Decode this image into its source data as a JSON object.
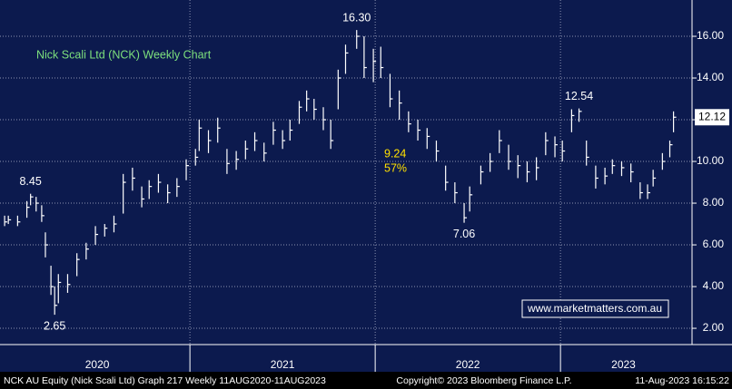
{
  "chart_data": {
    "type": "hlc",
    "title": "Nick Scali Ltd (NCK) Weekly Chart",
    "footer_left": "NCK AU Equity (Nick Scali Ltd) Graph 217  Weekly 11AUG2020-11AUG2023",
    "footer_center": "Copyright© 2023 Bloomberg Finance L.P.",
    "footer_right": "11-Aug-2023 16:15:22",
    "watermark": "www.marketmatters.com.au",
    "color": "#ffffff",
    "background": "#0c1a4e",
    "grid": true,
    "x": [
      2020.0,
      2020.02,
      2020.07,
      2020.12,
      2020.14,
      2020.17,
      2020.2,
      2020.22,
      2020.25,
      2020.27,
      2020.29,
      2020.34,
      2020.39,
      2020.44,
      2020.49,
      2020.54,
      2020.59,
      2020.64,
      2020.69,
      2020.74,
      2020.78,
      2020.83,
      2020.88,
      2020.93,
      2020.98,
      2021.03,
      2021.05,
      2021.1,
      2021.15,
      2021.2,
      2021.25,
      2021.3,
      2021.35,
      2021.4,
      2021.45,
      2021.5,
      2021.54,
      2021.59,
      2021.63,
      2021.67,
      2021.72,
      2021.76,
      2021.8,
      2021.84,
      2021.9,
      2021.94,
      2021.99,
      2022.03,
      2022.08,
      2022.13,
      2022.18,
      2022.23,
      2022.28,
      2022.33,
      2022.38,
      2022.43,
      2022.48,
      2022.51,
      2022.57,
      2022.62,
      2022.67,
      2022.72,
      2022.77,
      2022.82,
      2022.87,
      2022.92,
      2022.97,
      2023.01,
      2023.06,
      2023.1,
      2023.14,
      2023.19,
      2023.24,
      2023.28,
      2023.33,
      2023.38,
      2023.43,
      2023.47,
      2023.5,
      2023.55,
      2023.59,
      2023.61
    ],
    "high": [
      7.4,
      7.4,
      7.4,
      8.1,
      8.45,
      8.3,
      7.9,
      6.6,
      5.0,
      4.0,
      4.6,
      4.6,
      5.6,
      6.1,
      6.9,
      7.0,
      7.4,
      9.4,
      9.7,
      8.8,
      9.1,
      9.4,
      8.9,
      9.2,
      10.1,
      10.6,
      12.0,
      11.5,
      12.1,
      10.6,
      10.5,
      11.0,
      11.4,
      10.9,
      11.9,
      11.5,
      12.0,
      12.9,
      13.4,
      13.0,
      12.6,
      12.0,
      14.4,
      15.6,
      16.3,
      16.0,
      15.4,
      15.5,
      14.2,
      13.4,
      12.4,
      12.0,
      11.6,
      11.0,
      9.8,
      9.0,
      8.0,
      8.8,
      9.8,
      10.4,
      11.5,
      10.8,
      10.3,
      10.0,
      10.2,
      11.4,
      11.2,
      11.0,
      12.5,
      12.54,
      11.0,
      9.8,
      9.7,
      10.1,
      10.0,
      9.9,
      9.0,
      8.9,
      9.6,
      10.4,
      11.0,
      12.4
    ],
    "low": [
      6.9,
      7.0,
      6.9,
      7.3,
      7.9,
      7.6,
      7.1,
      5.4,
      3.6,
      2.65,
      3.2,
      3.7,
      4.5,
      5.3,
      6.0,
      6.4,
      6.6,
      7.5,
      8.6,
      7.8,
      8.2,
      8.5,
      8.0,
      8.3,
      9.1,
      9.8,
      10.5,
      10.4,
      10.9,
      9.4,
      9.6,
      10.1,
      10.5,
      10.0,
      10.8,
      10.6,
      11.0,
      11.8,
      12.4,
      12.0,
      11.5,
      10.6,
      12.5,
      14.2,
      15.4,
      14.0,
      13.8,
      14.0,
      12.6,
      12.0,
      11.4,
      11.0,
      10.6,
      10.0,
      8.6,
      8.0,
      7.06,
      7.6,
      8.9,
      9.5,
      10.4,
      9.6,
      9.2,
      9.0,
      9.1,
      10.3,
      10.2,
      10.0,
      11.4,
      11.9,
      9.8,
      8.7,
      8.9,
      9.4,
      9.3,
      9.0,
      8.2,
      8.2,
      8.8,
      9.6,
      10.2,
      11.4
    ],
    "close": [
      7.1,
      7.2,
      7.1,
      7.8,
      8.3,
      8.0,
      7.4,
      6.0,
      4.0,
      3.1,
      4.2,
      4.1,
      5.3,
      5.8,
      6.5,
      6.8,
      7.0,
      9.0,
      9.2,
      8.2,
      8.8,
      9.0,
      8.5,
      8.8,
      9.8,
      10.2,
      11.6,
      11.0,
      11.6,
      9.9,
      10.1,
      10.6,
      11.0,
      10.4,
      11.5,
      11.0,
      11.5,
      12.6,
      13.0,
      12.5,
      12.0,
      11.0,
      14.0,
      15.2,
      16.0,
      14.5,
      14.8,
      14.5,
      13.0,
      12.8,
      11.8,
      11.5,
      11.2,
      10.5,
      9.0,
      8.5,
      7.3,
      8.4,
      9.5,
      10.0,
      11.0,
      10.0,
      9.8,
      9.5,
      9.7,
      11.0,
      10.8,
      10.5,
      12.2,
      12.4,
      10.2,
      9.2,
      9.3,
      9.8,
      9.7,
      9.5,
      8.5,
      8.5,
      9.2,
      10.0,
      10.8,
      12.12
    ],
    "callouts": [
      {
        "x": 2020.14,
        "value": 8.45,
        "label": "8.45",
        "position": "above"
      },
      {
        "x": 2020.27,
        "value": 2.65,
        "label": "2.65",
        "position": "below"
      },
      {
        "x": 2021.9,
        "value": 16.3,
        "label": "16.30",
        "position": "above"
      },
      {
        "x": 2022.48,
        "value": 7.06,
        "label": "7.06",
        "position": "below"
      },
      {
        "x": 2023.1,
        "value": 12.54,
        "label": "12.54",
        "position": "above"
      }
    ],
    "annotation": {
      "value": 9.24,
      "percent": 57,
      "percent_label": "57%",
      "color": "#ffe000"
    },
    "xlim": [
      2019.975,
      2023.71
    ],
    "xticks": [
      {
        "value": 2020.5,
        "label": "2020"
      },
      {
        "value": 2021.5,
        "label": "2021"
      },
      {
        "value": 2022.5,
        "label": "2022"
      },
      {
        "value": 2023.34,
        "label": "2023"
      }
    ],
    "x_separators": [
      2021,
      2022,
      2023
    ],
    "ylim": [
      1.22,
      17.74
    ],
    "yticks": [
      {
        "value": 2,
        "label": "2.00"
      },
      {
        "value": 4,
        "label": "4.00"
      },
      {
        "value": 6,
        "label": "6.00"
      },
      {
        "value": 8,
        "label": "8.00"
      },
      {
        "value": 10,
        "label": "10.00"
      },
      {
        "value": 12,
        "label": "12.00"
      },
      {
        "value": 14,
        "label": "14.00"
      },
      {
        "value": 16,
        "label": "16.00"
      }
    ]
  }
}
